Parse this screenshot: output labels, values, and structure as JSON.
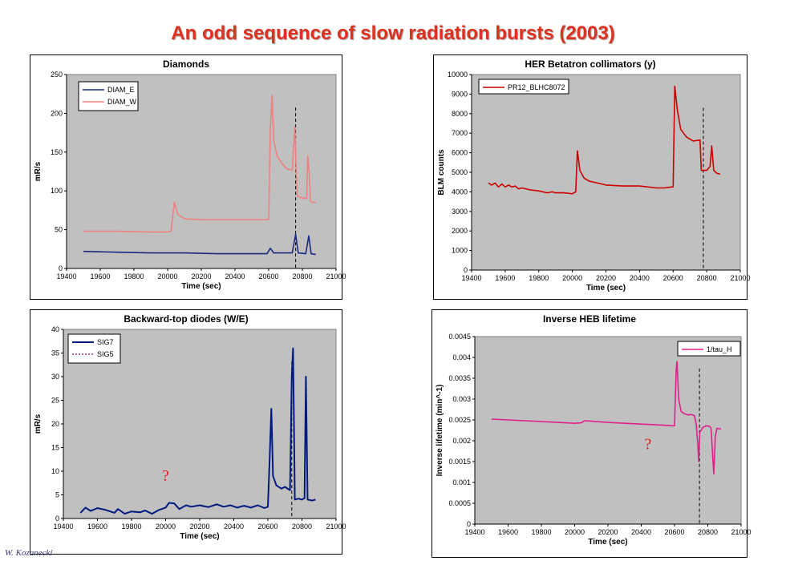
{
  "page": {
    "title": "An odd sequence of slow radiation bursts (2003)",
    "author": "W. Kozanecki"
  },
  "chart_data": [
    {
      "id": "diamonds",
      "type": "line",
      "title": "Diamonds",
      "xlabel": "Time (sec)",
      "ylabel": "mR/s",
      "xlim": [
        19400,
        21000
      ],
      "ylim": [
        0,
        250
      ],
      "xticks": [
        19400,
        19600,
        19800,
        20000,
        20200,
        20400,
        20600,
        20800,
        21000
      ],
      "yticks": [
        0,
        50,
        100,
        150,
        200,
        250
      ],
      "plot_bg": "#c0c0c0",
      "grid": false,
      "legend": "top-left",
      "vline": 20760,
      "annotation": "",
      "series": [
        {
          "name": "DIAM_E",
          "color": "#1a2a80",
          "dash": "",
          "points": [
            [
              19500,
              22
            ],
            [
              19700,
              21
            ],
            [
              19900,
              20
            ],
            [
              20100,
              20
            ],
            [
              20300,
              19
            ],
            [
              20500,
              19
            ],
            [
              20590,
              19
            ],
            [
              20610,
              26
            ],
            [
              20630,
              20
            ],
            [
              20740,
              20
            ],
            [
              20760,
              44
            ],
            [
              20775,
              20
            ],
            [
              20820,
              19
            ],
            [
              20838,
              42
            ],
            [
              20852,
              19
            ],
            [
              20880,
              18
            ]
          ]
        },
        {
          "name": "DIAM_W",
          "color": "#f08080",
          "dash": "",
          "points": [
            [
              19500,
              48
            ],
            [
              19700,
              48
            ],
            [
              19900,
              47
            ],
            [
              20000,
              47
            ],
            [
              20020,
              48
            ],
            [
              20040,
              85
            ],
            [
              20060,
              70
            ],
            [
              20100,
              64
            ],
            [
              20200,
              63
            ],
            [
              20300,
              63
            ],
            [
              20400,
              63
            ],
            [
              20500,
              63
            ],
            [
              20590,
              63
            ],
            [
              20600,
              63
            ],
            [
              20610,
              180
            ],
            [
              20620,
              223
            ],
            [
              20630,
              165
            ],
            [
              20650,
              145
            ],
            [
              20680,
              135
            ],
            [
              20710,
              128
            ],
            [
              20740,
              127
            ],
            [
              20755,
              183
            ],
            [
              20762,
              135
            ],
            [
              20770,
              93
            ],
            [
              20800,
              91
            ],
            [
              20825,
              90
            ],
            [
              20832,
              145
            ],
            [
              20840,
              125
            ],
            [
              20848,
              86
            ],
            [
              20880,
              85
            ]
          ]
        }
      ]
    },
    {
      "id": "her_betatron",
      "type": "line",
      "title": "HER Betatron collimators (y)",
      "xlabel": "Time (sec)",
      "ylabel": "BLM counts",
      "xlim": [
        19400,
        21000
      ],
      "ylim": [
        0,
        10000
      ],
      "xticks": [
        19400,
        19600,
        19800,
        20000,
        20200,
        20400,
        20600,
        20800,
        21000
      ],
      "yticks": [
        0,
        1000,
        2000,
        3000,
        4000,
        5000,
        6000,
        7000,
        8000,
        9000,
        10000
      ],
      "plot_bg": "#c0c0c0",
      "grid": false,
      "legend": "top-left",
      "vline": 20780,
      "annotation": "",
      "series": [
        {
          "name": "PR12_BLHC8072",
          "color": "#cc0000",
          "dash": "",
          "points": [
            [
              19500,
              4450
            ],
            [
              19520,
              4350
            ],
            [
              19540,
              4450
            ],
            [
              19560,
              4250
            ],
            [
              19580,
              4400
            ],
            [
              19600,
              4250
            ],
            [
              19620,
              4350
            ],
            [
              19640,
              4250
            ],
            [
              19660,
              4300
            ],
            [
              19680,
              4150
            ],
            [
              19700,
              4200
            ],
            [
              19750,
              4100
            ],
            [
              19800,
              4050
            ],
            [
              19850,
              3950
            ],
            [
              19880,
              4000
            ],
            [
              19900,
              3950
            ],
            [
              19950,
              3950
            ],
            [
              20000,
              3900
            ],
            [
              20020,
              4000
            ],
            [
              20030,
              6100
            ],
            [
              20045,
              5100
            ],
            [
              20070,
              4700
            ],
            [
              20100,
              4550
            ],
            [
              20150,
              4450
            ],
            [
              20200,
              4350
            ],
            [
              20300,
              4300
            ],
            [
              20400,
              4300
            ],
            [
              20500,
              4200
            ],
            [
              20550,
              4200
            ],
            [
              20590,
              4250
            ],
            [
              20600,
              4250
            ],
            [
              20610,
              9400
            ],
            [
              20625,
              8200
            ],
            [
              20645,
              7200
            ],
            [
              20680,
              6800
            ],
            [
              20720,
              6600
            ],
            [
              20760,
              6650
            ],
            [
              20768,
              5100
            ],
            [
              20800,
              5100
            ],
            [
              20820,
              5300
            ],
            [
              20830,
              6350
            ],
            [
              20842,
              5100
            ],
            [
              20860,
              4950
            ],
            [
              20880,
              4900
            ]
          ]
        }
      ]
    },
    {
      "id": "backward_top",
      "type": "line",
      "title": "Backward-top diodes (W/E)",
      "xlabel": "Time (sec)",
      "ylabel": "mR/s",
      "xlim": [
        19400,
        21000
      ],
      "ylim": [
        0,
        40
      ],
      "xticks": [
        19400,
        19600,
        19800,
        20000,
        20200,
        20400,
        20600,
        20800,
        21000
      ],
      "yticks": [
        0,
        5,
        10,
        15,
        20,
        25,
        30,
        35,
        40
      ],
      "plot_bg": "#c0c0c0",
      "grid": false,
      "legend": "top-left",
      "vline": 20740,
      "annotation": "?",
      "annotation_at": [
        20000,
        8
      ],
      "series": [
        {
          "name": "SIG7",
          "color": "#001a80",
          "dash": "",
          "points": [
            [
              19500,
              1.2
            ],
            [
              19530,
              2.3
            ],
            [
              19560,
              1.6
            ],
            [
              19600,
              2.2
            ],
            [
              19650,
              1.8
            ],
            [
              19700,
              1.2
            ],
            [
              19720,
              2.0
            ],
            [
              19760,
              1.0
            ],
            [
              19800,
              1.5
            ],
            [
              19850,
              1.3
            ],
            [
              19880,
              1.7
            ],
            [
              19920,
              1.0
            ],
            [
              19960,
              1.8
            ],
            [
              20000,
              2.3
            ],
            [
              20020,
              3.3
            ],
            [
              20050,
              3.2
            ],
            [
              20080,
              2.0
            ],
            [
              20120,
              2.8
            ],
            [
              20150,
              2.5
            ],
            [
              20200,
              2.8
            ],
            [
              20250,
              2.4
            ],
            [
              20300,
              3.0
            ],
            [
              20340,
              2.5
            ],
            [
              20380,
              2.8
            ],
            [
              20420,
              2.3
            ],
            [
              20460,
              2.7
            ],
            [
              20500,
              2.3
            ],
            [
              20540,
              2.8
            ],
            [
              20580,
              2.2
            ],
            [
              20600,
              2.5
            ],
            [
              20610,
              12.0
            ],
            [
              20620,
              23.2
            ],
            [
              20630,
              9.0
            ],
            [
              20650,
              7.0
            ],
            [
              20680,
              6.3
            ],
            [
              20700,
              6.7
            ],
            [
              20720,
              6.2
            ],
            [
              20730,
              6.0
            ],
            [
              20740,
              30.0
            ],
            [
              20748,
              36.0
            ],
            [
              20758,
              4.0
            ],
            [
              20780,
              4.2
            ],
            [
              20800,
              4.0
            ],
            [
              20815,
              4.3
            ],
            [
              20823,
              30.0
            ],
            [
              20833,
              4.0
            ],
            [
              20860,
              3.8
            ],
            [
              20880,
              4.0
            ]
          ]
        },
        {
          "name": "SIG5",
          "color": "#a0309a",
          "dash": "2,2",
          "points": []
        }
      ]
    },
    {
      "id": "inverse_heb",
      "type": "line",
      "title": "Inverse HEB lifetime",
      "xlabel": "Time (sec)",
      "ylabel": "Inverse lifetime (min^-1)",
      "xlim": [
        19400,
        21000
      ],
      "ylim": [
        0,
        0.0045
      ],
      "xticks": [
        19400,
        19600,
        19800,
        20000,
        20200,
        20400,
        20600,
        20800,
        21000
      ],
      "yticks": [
        0,
        0.0005,
        0.001,
        0.0015,
        0.002,
        0.0025,
        0.003,
        0.0035,
        0.004,
        0.0045
      ],
      "plot_bg": "#c0c0c0",
      "grid": false,
      "legend": "top-right",
      "vline": 20750,
      "annotation": "?",
      "annotation_at": [
        20440,
        0.0018
      ],
      "series": [
        {
          "name": "1/tau_H",
          "color": "#e0208a",
          "dash": "",
          "points": [
            [
              19500,
              0.00252
            ],
            [
              19700,
              0.00248
            ],
            [
              19900,
              0.00244
            ],
            [
              20000,
              0.00242
            ],
            [
              20040,
              0.00243
            ],
            [
              20060,
              0.00248
            ],
            [
              20100,
              0.00247
            ],
            [
              20200,
              0.00244
            ],
            [
              20300,
              0.00242
            ],
            [
              20400,
              0.0024
            ],
            [
              20500,
              0.00238
            ],
            [
              20590,
              0.00236
            ],
            [
              20600,
              0.00236
            ],
            [
              20610,
              0.0037
            ],
            [
              20615,
              0.0039
            ],
            [
              20625,
              0.003
            ],
            [
              20640,
              0.0027
            ],
            [
              20660,
              0.00265
            ],
            [
              20680,
              0.00262
            ],
            [
              20700,
              0.00263
            ],
            [
              20720,
              0.0026
            ],
            [
              20730,
              0.0024
            ],
            [
              20740,
              0.0019
            ],
            [
              20745,
              0.0015
            ],
            [
              20752,
              0.0022
            ],
            [
              20770,
              0.00232
            ],
            [
              20790,
              0.00236
            ],
            [
              20810,
              0.00235
            ],
            [
              20820,
              0.0023
            ],
            [
              20830,
              0.0016
            ],
            [
              20836,
              0.0012
            ],
            [
              20845,
              0.0021
            ],
            [
              20855,
              0.0023
            ],
            [
              20880,
              0.00228
            ]
          ]
        }
      ]
    }
  ]
}
